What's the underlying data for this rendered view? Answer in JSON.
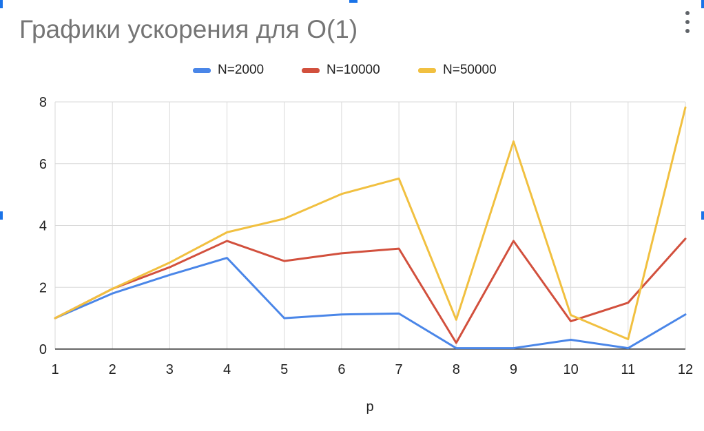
{
  "chart_data": {
    "type": "line",
    "title": "Графики ускорения для O(1)",
    "xlabel": "p",
    "ylabel": "",
    "x": [
      1,
      2,
      3,
      4,
      5,
      6,
      7,
      8,
      9,
      10,
      11,
      12
    ],
    "ylim": [
      0,
      8
    ],
    "yticks": [
      0,
      2,
      4,
      6,
      8
    ],
    "grid": true,
    "legend_position": "top-center",
    "series": [
      {
        "name": "N=2000",
        "color": "#4a86e8",
        "values": [
          1.0,
          1.8,
          2.4,
          2.95,
          1.0,
          1.12,
          1.15,
          0.03,
          0.03,
          0.3,
          0.03,
          1.12
        ]
      },
      {
        "name": "N=10000",
        "color": "#d2503d",
        "values": [
          1.0,
          1.95,
          2.65,
          3.5,
          2.85,
          3.1,
          3.25,
          0.2,
          3.5,
          0.9,
          1.5,
          3.57
        ]
      },
      {
        "name": "N=50000",
        "color": "#f1c040",
        "values": [
          1.0,
          1.95,
          2.8,
          3.78,
          4.22,
          5.02,
          5.52,
          0.95,
          6.72,
          1.1,
          0.32,
          7.82
        ]
      }
    ]
  },
  "menu_icon": "more-vert-icon"
}
